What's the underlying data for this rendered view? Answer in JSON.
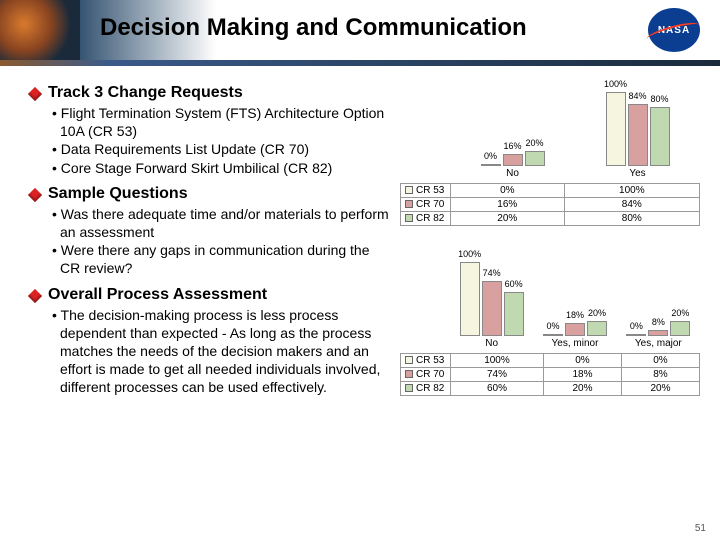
{
  "title": "Decision Making and Communication",
  "logo_text": "NASA",
  "page_number": "51",
  "colors": {
    "cr53": "#f5f5e0",
    "cr70": "#d9a0a0",
    "cr82": "#c0d9b0"
  },
  "bullets": [
    {
      "heading": "Track 3 Change Requests",
      "subs": [
        "Flight Termination System (FTS) Architecture Option 10A (CR 53)",
        "Data Requirements List Update (CR 70)",
        "Core Stage Forward Skirt Umbilical (CR 82)"
      ]
    },
    {
      "heading": "Sample Questions",
      "subs": [
        "Was there adequate time and/or materials to perform an assessment",
        "Were there any gaps in communication during the CR review?"
      ]
    },
    {
      "heading": "Overall Process Assessment",
      "subs": [
        "The decision-making process is less process dependent than expected - As long as the process matches the needs of the decision makers and an effort is made to get all needed individuals involved, different processes can be used effectively."
      ]
    }
  ],
  "chart1": {
    "categories": [
      "No",
      "Yes"
    ],
    "series": [
      "CR 53",
      "CR 70",
      "CR 82"
    ],
    "values": [
      [
        "0%",
        "100%"
      ],
      [
        "16%",
        "84%"
      ],
      [
        "20%",
        "80%"
      ]
    ],
    "heights": [
      [
        0,
        100
      ],
      [
        16,
        84
      ],
      [
        20,
        80
      ]
    ]
  },
  "chart2": {
    "categories": [
      "No",
      "Yes, minor",
      "Yes, major"
    ],
    "series": [
      "CR 53",
      "CR 70",
      "CR 82"
    ],
    "values": [
      [
        "100%",
        "0%",
        "0%"
      ],
      [
        "74%",
        "18%",
        "8%"
      ],
      [
        "60%",
        "20%",
        "20%"
      ]
    ],
    "heights": [
      [
        100,
        0,
        0
      ],
      [
        74,
        18,
        8
      ],
      [
        60,
        20,
        20
      ]
    ]
  }
}
